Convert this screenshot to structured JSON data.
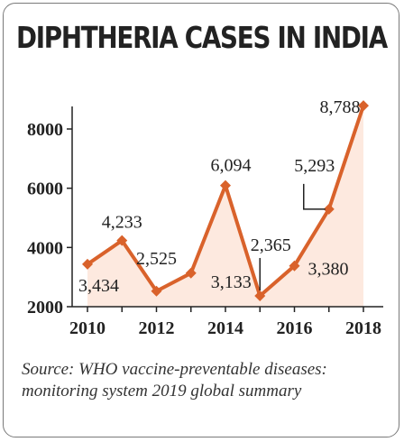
{
  "chart_data": {
    "type": "line",
    "title": "DIPHTHERIA CASES IN INDIA",
    "x": [
      2010,
      2011,
      2012,
      2013,
      2014,
      2015,
      2016,
      2017,
      2018
    ],
    "values": [
      3434,
      4233,
      2525,
      3133,
      6094,
      2365,
      3380,
      5293,
      8788
    ],
    "data_labels": [
      "3,434",
      "4,233",
      "2,525",
      "3,133",
      "6,094",
      "2,365",
      "3,380",
      "5,293",
      "8,788"
    ],
    "x_tick_labels": [
      "2010",
      "2012",
      "2014",
      "2016",
      "2018"
    ],
    "y_tick_labels": [
      "2000",
      "4000",
      "6000",
      "8000"
    ],
    "y_ticks": [
      2000,
      4000,
      6000,
      8000
    ],
    "xlabel": "",
    "ylabel": "",
    "xlim": [
      2010,
      2018
    ],
    "ylim": [
      2000,
      8788
    ],
    "grid": false,
    "area_fill": true,
    "line_color": "#d9622b",
    "fill_color": "#fde9df"
  },
  "source_text": "Source: WHO vaccine-preventable diseases: monitoring system 2019 global summary"
}
